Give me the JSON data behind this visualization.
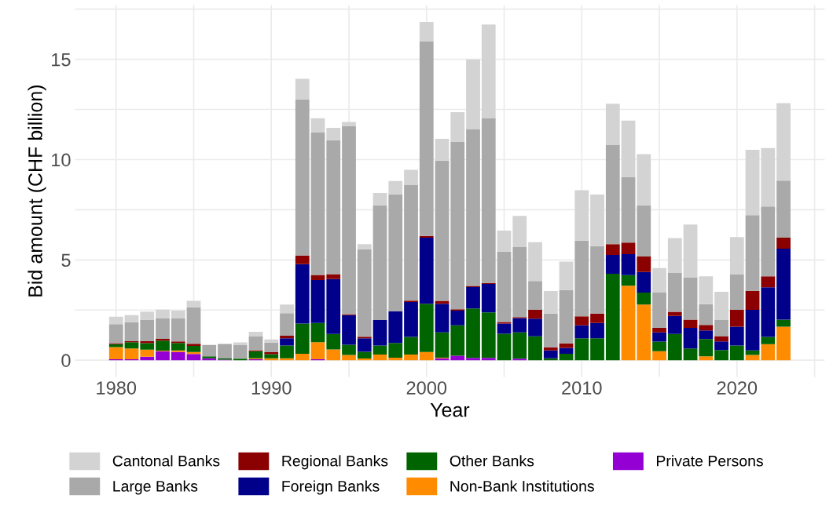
{
  "chart_data": {
    "type": "bar",
    "stacked": true,
    "xlabel": "Year",
    "ylabel": "Bid amount (CHF billion)",
    "x": [
      1980,
      1981,
      1982,
      1983,
      1984,
      1985,
      1986,
      1987,
      1988,
      1989,
      1990,
      1991,
      1992,
      1993,
      1994,
      1995,
      1996,
      1997,
      1998,
      1999,
      2000,
      2001,
      2002,
      2003,
      2004,
      2005,
      2006,
      2007,
      2008,
      2009,
      2010,
      2011,
      2012,
      2013,
      2014,
      2015,
      2016,
      2017,
      2018,
      2019,
      2020,
      2021,
      2022,
      2023
    ],
    "xlim": [
      1977.35,
      2025.65
    ],
    "xticks": [
      1980,
      {
        "value": 1985,
        "label": null
      },
      1990,
      {
        "value": 1995,
        "label": null
      },
      2000,
      {
        "value": 2005,
        "label": null
      },
      2010,
      {
        "value": 2015,
        "label": null
      },
      2020,
      {
        "value": 2025,
        "label": null
      }
    ],
    "ylim": [
      -0.84,
      17.7
    ],
    "yticks": [
      0,
      {
        "value": 2.5,
        "label": null
      },
      5,
      {
        "value": 7.5,
        "label": null
      },
      10,
      {
        "value": 12.5,
        "label": null
      },
      15,
      {
        "value": 17.5,
        "label": null
      }
    ],
    "grid": true,
    "legend": "bottom",
    "series": [
      {
        "name": "Private Persons",
        "color": "#9400d3",
        "values": [
          0.05,
          0.05,
          0.17,
          0.45,
          0.41,
          0.31,
          0.1,
          0.03,
          null,
          0.05,
          0,
          0,
          0,
          0.05,
          0,
          0,
          0,
          0,
          0,
          0,
          0,
          0.1,
          0.22,
          0.12,
          0.12,
          0,
          0.08,
          0,
          0,
          0,
          0,
          0,
          0,
          0,
          0,
          0,
          0,
          0,
          0,
          0,
          0,
          0,
          0,
          0
        ]
      },
      {
        "name": "Non-Bank Institutions",
        "color": "#ff8c00",
        "values": [
          0.6,
          0.53,
          0.36,
          0.03,
          0.08,
          0.1,
          0,
          0,
          0,
          0.05,
          0.1,
          0.1,
          0.32,
          0.85,
          0.54,
          0.26,
          0.09,
          0.28,
          0.13,
          0.28,
          0.41,
          0.03,
          0,
          0,
          0,
          0,
          0,
          0,
          0,
          0,
          0,
          0,
          0,
          3.71,
          2.77,
          0.45,
          0,
          0,
          0.19,
          0,
          0,
          0.26,
          0.8,
          1.67
        ]
      },
      {
        "name": "Other Banks",
        "color": "#006400",
        "values": [
          0.15,
          0.32,
          0.32,
          0.5,
          0.37,
          0.3,
          0.09,
          0.06,
          0.08,
          0.35,
          0.2,
          0.63,
          1.51,
          0.96,
          0.77,
          0.51,
          0.33,
          0.45,
          0.73,
          0.88,
          2.4,
          1.26,
          1.52,
          2.46,
          2.26,
          1.32,
          1.31,
          1.19,
          0.1,
          0.32,
          1.09,
          1.09,
          4.31,
          0.53,
          0.6,
          0.48,
          1.31,
          0.58,
          0.86,
          0.51,
          0.73,
          0.23,
          0.36,
          0.35
        ]
      },
      {
        "name": "Foreign Banks",
        "color": "#00008b",
        "values": [
          0,
          0,
          0,
          0,
          0,
          0,
          0,
          0,
          0,
          0,
          0,
          0.36,
          2.96,
          2.14,
          2.74,
          1.48,
          0.67,
          1.27,
          1.58,
          1.74,
          3.3,
          1.42,
          0.73,
          1.06,
          1.42,
          0.51,
          0.71,
          0.88,
          0.39,
          0.29,
          0.65,
          0.77,
          0.94,
          1.05,
          1.03,
          0.46,
          0.9,
          1.03,
          0.43,
          0.43,
          0.94,
          2.02,
          2.47,
          3.54
        ]
      },
      {
        "name": "Regional Banks",
        "color": "#8b0000",
        "values": [
          0.05,
          0.05,
          0.1,
          0.08,
          0.08,
          0.11,
          0,
          0,
          0,
          0.05,
          0.1,
          0.13,
          0.43,
          0.25,
          0.24,
          0.05,
          0.08,
          0,
          0,
          0.07,
          0.09,
          0.15,
          0.07,
          0.06,
          0.05,
          0.07,
          0.05,
          0.44,
          0.15,
          0.23,
          0.45,
          0.46,
          0.54,
          0.57,
          0.77,
          0.22,
          0.2,
          0.41,
          0.28,
          0.26,
          0.84,
          0.95,
          0.55,
          0.55
        ]
      },
      {
        "name": "Large Banks",
        "color": "#a9a9a9",
        "values": [
          0.95,
          0.94,
          1.07,
          1.02,
          1.16,
          1.82,
          0.57,
          0.72,
          0.67,
          0.7,
          0.48,
          1.12,
          7.78,
          7.1,
          6.68,
          9.37,
          4.36,
          5.72,
          5.83,
          5.76,
          9.7,
          6.99,
          8.36,
          7.82,
          8.22,
          3.51,
          3.49,
          1.44,
          1.68,
          2.66,
          3.77,
          3.37,
          4.93,
          3.28,
          2.55,
          1.76,
          1.94,
          2.11,
          1.03,
          0.82,
          1.78,
          3.77,
          3.48,
          2.84
        ]
      },
      {
        "name": "Cantonal Banks",
        "color": "#d3d3d3",
        "values": [
          0.37,
          0.36,
          0.4,
          0.44,
          0.37,
          0.32,
          null,
          null,
          0.14,
          0.22,
          0.15,
          0.43,
          1.03,
          0.71,
          0.61,
          0.21,
          0.26,
          0.62,
          0.66,
          0.76,
          0.96,
          1.08,
          1.46,
          3.47,
          4.66,
          1.05,
          1.55,
          1.93,
          1.13,
          1.42,
          2.51,
          2.57,
          2.06,
          2.8,
          2.55,
          1.22,
          1.74,
          2.63,
          1.39,
          1.39,
          1.85,
          3.26,
          2.92,
          3.86
        ]
      }
    ]
  }
}
